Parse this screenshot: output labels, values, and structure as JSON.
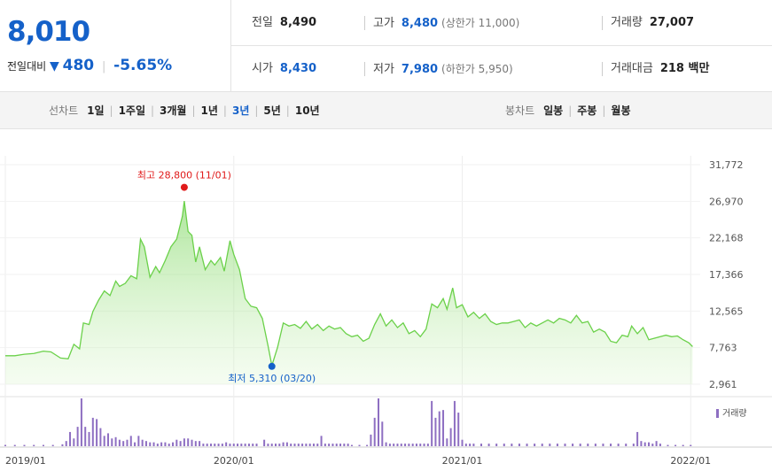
{
  "summary": {
    "current_price": "8,010",
    "change_label": "전일대비",
    "change_symbol": "▼",
    "change_value": "480",
    "change_pct": "-5.65%",
    "prev_close": {
      "label": "전일",
      "value": "8,490"
    },
    "high": {
      "label": "고가",
      "value": "8,480",
      "limit": "(상한가 11,000)"
    },
    "volume": {
      "label": "거래량",
      "value": "27,007"
    },
    "open": {
      "label": "시가",
      "value": "8,430"
    },
    "low": {
      "label": "저가",
      "value": "7,980",
      "limit": "(하한가 5,950)"
    },
    "turnover": {
      "label": "거래대금",
      "value": "218 백만"
    }
  },
  "toolbar": {
    "line_chart_label": "선차트",
    "line_periods": [
      "1일",
      "1주일",
      "3개월",
      "1년",
      "3년",
      "5년",
      "10년"
    ],
    "active_period": "3년",
    "candle_chart_label": "봉차트",
    "candle_periods": [
      "일봉",
      "주봉",
      "월봉"
    ]
  },
  "chart_data": {
    "type": "area",
    "y_ticks": [
      "31,772",
      "26,970",
      "22,168",
      "17,366",
      "12,565",
      "7,763",
      "2,961"
    ],
    "y_tick_values": [
      31772,
      26970,
      22168,
      17366,
      12565,
      7763,
      2961
    ],
    "ylim": [
      2961,
      31772
    ],
    "x_ticks": [
      "2019/01",
      "2020/01",
      "2021/01",
      "2022/01"
    ],
    "x_tick_positions": [
      0,
      12,
      24,
      36
    ],
    "x_range": [
      0,
      36.5
    ],
    "max_annotation": "최고 28,800 (11/01)",
    "max_point": {
      "x": 9.4,
      "y": 28800
    },
    "min_annotation": "최저 5,310 (03/20)",
    "min_point": {
      "x": 14.0,
      "y": 5310
    },
    "volume_label": "거래량",
    "line_color": "#6bd14a",
    "fill_color": "#d7f5c8",
    "volume_color": "#8e6fc2",
    "max_color": "#e01a1a",
    "min_color": "#1561c9",
    "price_series": [
      [
        0,
        6700
      ],
      [
        0.5,
        6700
      ],
      [
        1,
        6900
      ],
      [
        1.5,
        7000
      ],
      [
        2,
        7300
      ],
      [
        2.4,
        7200
      ],
      [
        2.9,
        6400
      ],
      [
        3.3,
        6300
      ],
      [
        3.6,
        8200
      ],
      [
        3.9,
        7600
      ],
      [
        4.1,
        11000
      ],
      [
        4.4,
        10800
      ],
      [
        4.6,
        12500
      ],
      [
        4.9,
        14000
      ],
      [
        5.2,
        15200
      ],
      [
        5.5,
        14600
      ],
      [
        5.8,
        16500
      ],
      [
        6.0,
        15800
      ],
      [
        6.3,
        16200
      ],
      [
        6.6,
        17200
      ],
      [
        6.9,
        16800
      ],
      [
        7.1,
        22000
      ],
      [
        7.3,
        21000
      ],
      [
        7.6,
        17000
      ],
      [
        7.9,
        18400
      ],
      [
        8.1,
        17600
      ],
      [
        8.4,
        19200
      ],
      [
        8.7,
        21000
      ],
      [
        9.0,
        22000
      ],
      [
        9.3,
        25000
      ],
      [
        9.4,
        27000
      ],
      [
        9.6,
        23000
      ],
      [
        9.8,
        22500
      ],
      [
        10.0,
        19000
      ],
      [
        10.2,
        21000
      ],
      [
        10.5,
        18000
      ],
      [
        10.8,
        19200
      ],
      [
        11.0,
        18600
      ],
      [
        11.3,
        19600
      ],
      [
        11.5,
        17800
      ],
      [
        11.8,
        21800
      ],
      [
        12.0,
        20000
      ],
      [
        12.3,
        18000
      ],
      [
        12.6,
        14200
      ],
      [
        12.9,
        13200
      ],
      [
        13.2,
        13000
      ],
      [
        13.5,
        11600
      ],
      [
        13.8,
        8000
      ],
      [
        14.0,
        5400
      ],
      [
        14.3,
        7800
      ],
      [
        14.6,
        11000
      ],
      [
        14.9,
        10600
      ],
      [
        15.2,
        10800
      ],
      [
        15.5,
        10300
      ],
      [
        15.8,
        11200
      ],
      [
        16.1,
        10200
      ],
      [
        16.4,
        10800
      ],
      [
        16.7,
        10000
      ],
      [
        17.0,
        10600
      ],
      [
        17.3,
        10200
      ],
      [
        17.6,
        10400
      ],
      [
        17.9,
        9600
      ],
      [
        18.2,
        9200
      ],
      [
        18.5,
        9400
      ],
      [
        18.8,
        8600
      ],
      [
        19.1,
        9000
      ],
      [
        19.4,
        10800
      ],
      [
        19.7,
        12200
      ],
      [
        20.0,
        10600
      ],
      [
        20.3,
        11400
      ],
      [
        20.6,
        10400
      ],
      [
        20.9,
        11000
      ],
      [
        21.2,
        9600
      ],
      [
        21.5,
        10000
      ],
      [
        21.8,
        9200
      ],
      [
        22.1,
        10200
      ],
      [
        22.4,
        13500
      ],
      [
        22.7,
        13000
      ],
      [
        23.0,
        14200
      ],
      [
        23.2,
        12800
      ],
      [
        23.5,
        15600
      ],
      [
        23.7,
        13000
      ],
      [
        24.0,
        13400
      ],
      [
        24.3,
        11800
      ],
      [
        24.6,
        12400
      ],
      [
        24.9,
        11600
      ],
      [
        25.2,
        12200
      ],
      [
        25.5,
        11200
      ],
      [
        25.8,
        10800
      ],
      [
        26.1,
        11000
      ],
      [
        26.4,
        11000
      ],
      [
        26.7,
        11200
      ],
      [
        27.0,
        11400
      ],
      [
        27.3,
        10400
      ],
      [
        27.6,
        11000
      ],
      [
        27.9,
        10600
      ],
      [
        28.2,
        11000
      ],
      [
        28.5,
        11400
      ],
      [
        28.8,
        11000
      ],
      [
        29.1,
        11600
      ],
      [
        29.4,
        11400
      ],
      [
        29.7,
        11000
      ],
      [
        30.0,
        12000
      ],
      [
        30.3,
        11000
      ],
      [
        30.6,
        11200
      ],
      [
        30.9,
        9800
      ],
      [
        31.2,
        10200
      ],
      [
        31.5,
        9800
      ],
      [
        31.8,
        8600
      ],
      [
        32.1,
        8400
      ],
      [
        32.4,
        9400
      ],
      [
        32.7,
        9200
      ],
      [
        32.9,
        10600
      ],
      [
        33.2,
        9600
      ],
      [
        33.5,
        10400
      ],
      [
        33.8,
        8800
      ],
      [
        34.1,
        9000
      ],
      [
        34.4,
        9200
      ],
      [
        34.7,
        9400
      ],
      [
        35.0,
        9200
      ],
      [
        35.3,
        9300
      ],
      [
        35.6,
        8800
      ],
      [
        35.9,
        8400
      ],
      [
        36.1,
        7900
      ]
    ],
    "volume_series": [
      [
        0,
        2
      ],
      [
        0.5,
        2
      ],
      [
        1,
        2
      ],
      [
        1.5,
        2
      ],
      [
        2,
        2
      ],
      [
        2.5,
        2
      ],
      [
        3,
        3
      ],
      [
        3.2,
        8
      ],
      [
        3.4,
        22
      ],
      [
        3.6,
        12
      ],
      [
        3.8,
        30
      ],
      [
        4.0,
        74
      ],
      [
        4.2,
        30
      ],
      [
        4.4,
        22
      ],
      [
        4.6,
        44
      ],
      [
        4.8,
        42
      ],
      [
        5.0,
        28
      ],
      [
        5.2,
        16
      ],
      [
        5.4,
        20
      ],
      [
        5.6,
        12
      ],
      [
        5.8,
        14
      ],
      [
        6.0,
        10
      ],
      [
        6.2,
        8
      ],
      [
        6.4,
        10
      ],
      [
        6.6,
        16
      ],
      [
        6.8,
        6
      ],
      [
        7.0,
        16
      ],
      [
        7.2,
        10
      ],
      [
        7.4,
        8
      ],
      [
        7.6,
        6
      ],
      [
        7.8,
        6
      ],
      [
        8.0,
        4
      ],
      [
        8.2,
        6
      ],
      [
        8.4,
        6
      ],
      [
        8.6,
        4
      ],
      [
        8.8,
        6
      ],
      [
        9.0,
        10
      ],
      [
        9.2,
        8
      ],
      [
        9.4,
        12
      ],
      [
        9.6,
        12
      ],
      [
        9.8,
        10
      ],
      [
        10.0,
        8
      ],
      [
        10.2,
        8
      ],
      [
        10.4,
        4
      ],
      [
        10.6,
        4
      ],
      [
        10.8,
        4
      ],
      [
        11.0,
        4
      ],
      [
        11.2,
        4
      ],
      [
        11.4,
        4
      ],
      [
        11.6,
        6
      ],
      [
        11.8,
        4
      ],
      [
        12.0,
        4
      ],
      [
        12.2,
        4
      ],
      [
        12.4,
        4
      ],
      [
        12.6,
        4
      ],
      [
        12.8,
        4
      ],
      [
        13.0,
        4
      ],
      [
        13.2,
        4
      ],
      [
        13.6,
        10
      ],
      [
        13.8,
        4
      ],
      [
        14.0,
        4
      ],
      [
        14.2,
        4
      ],
      [
        14.4,
        4
      ],
      [
        14.6,
        6
      ],
      [
        14.8,
        6
      ],
      [
        15.0,
        4
      ],
      [
        15.2,
        4
      ],
      [
        15.4,
        4
      ],
      [
        15.6,
        4
      ],
      [
        15.8,
        4
      ],
      [
        16.0,
        4
      ],
      [
        16.2,
        4
      ],
      [
        16.4,
        4
      ],
      [
        16.6,
        16
      ],
      [
        16.8,
        4
      ],
      [
        17.0,
        4
      ],
      [
        17.2,
        4
      ],
      [
        17.4,
        4
      ],
      [
        17.6,
        4
      ],
      [
        17.8,
        4
      ],
      [
        18.0,
        4
      ],
      [
        18.2,
        2
      ],
      [
        18.6,
        2
      ],
      [
        19.0,
        2
      ],
      [
        19.2,
        18
      ],
      [
        19.4,
        44
      ],
      [
        19.6,
        74
      ],
      [
        19.8,
        38
      ],
      [
        20.0,
        6
      ],
      [
        20.2,
        4
      ],
      [
        20.4,
        4
      ],
      [
        20.6,
        4
      ],
      [
        20.8,
        4
      ],
      [
        21.0,
        4
      ],
      [
        21.2,
        4
      ],
      [
        21.4,
        4
      ],
      [
        21.6,
        4
      ],
      [
        21.8,
        4
      ],
      [
        22.0,
        4
      ],
      [
        22.2,
        4
      ],
      [
        22.4,
        70
      ],
      [
        22.6,
        44
      ],
      [
        22.8,
        54
      ],
      [
        23.0,
        56
      ],
      [
        23.2,
        12
      ],
      [
        23.4,
        28
      ],
      [
        23.6,
        70
      ],
      [
        23.8,
        52
      ],
      [
        24.0,
        10
      ],
      [
        24.2,
        4
      ],
      [
        24.4,
        4
      ],
      [
        24.6,
        4
      ],
      [
        25.0,
        4
      ],
      [
        25.4,
        4
      ],
      [
        25.8,
        4
      ],
      [
        26.2,
        4
      ],
      [
        26.6,
        4
      ],
      [
        27.0,
        4
      ],
      [
        27.4,
        4
      ],
      [
        27.8,
        4
      ],
      [
        28.2,
        4
      ],
      [
        28.6,
        4
      ],
      [
        29.0,
        4
      ],
      [
        29.4,
        4
      ],
      [
        29.8,
        4
      ],
      [
        30.2,
        4
      ],
      [
        30.6,
        4
      ],
      [
        31.0,
        4
      ],
      [
        31.4,
        4
      ],
      [
        31.8,
        4
      ],
      [
        32.2,
        4
      ],
      [
        32.6,
        4
      ],
      [
        33.0,
        4
      ],
      [
        33.2,
        22
      ],
      [
        33.4,
        8
      ],
      [
        33.6,
        6
      ],
      [
        33.8,
        6
      ],
      [
        34.0,
        4
      ],
      [
        34.2,
        8
      ],
      [
        34.4,
        4
      ],
      [
        34.8,
        2
      ],
      [
        35.2,
        2
      ],
      [
        35.6,
        2
      ],
      [
        36.0,
        2
      ]
    ]
  }
}
